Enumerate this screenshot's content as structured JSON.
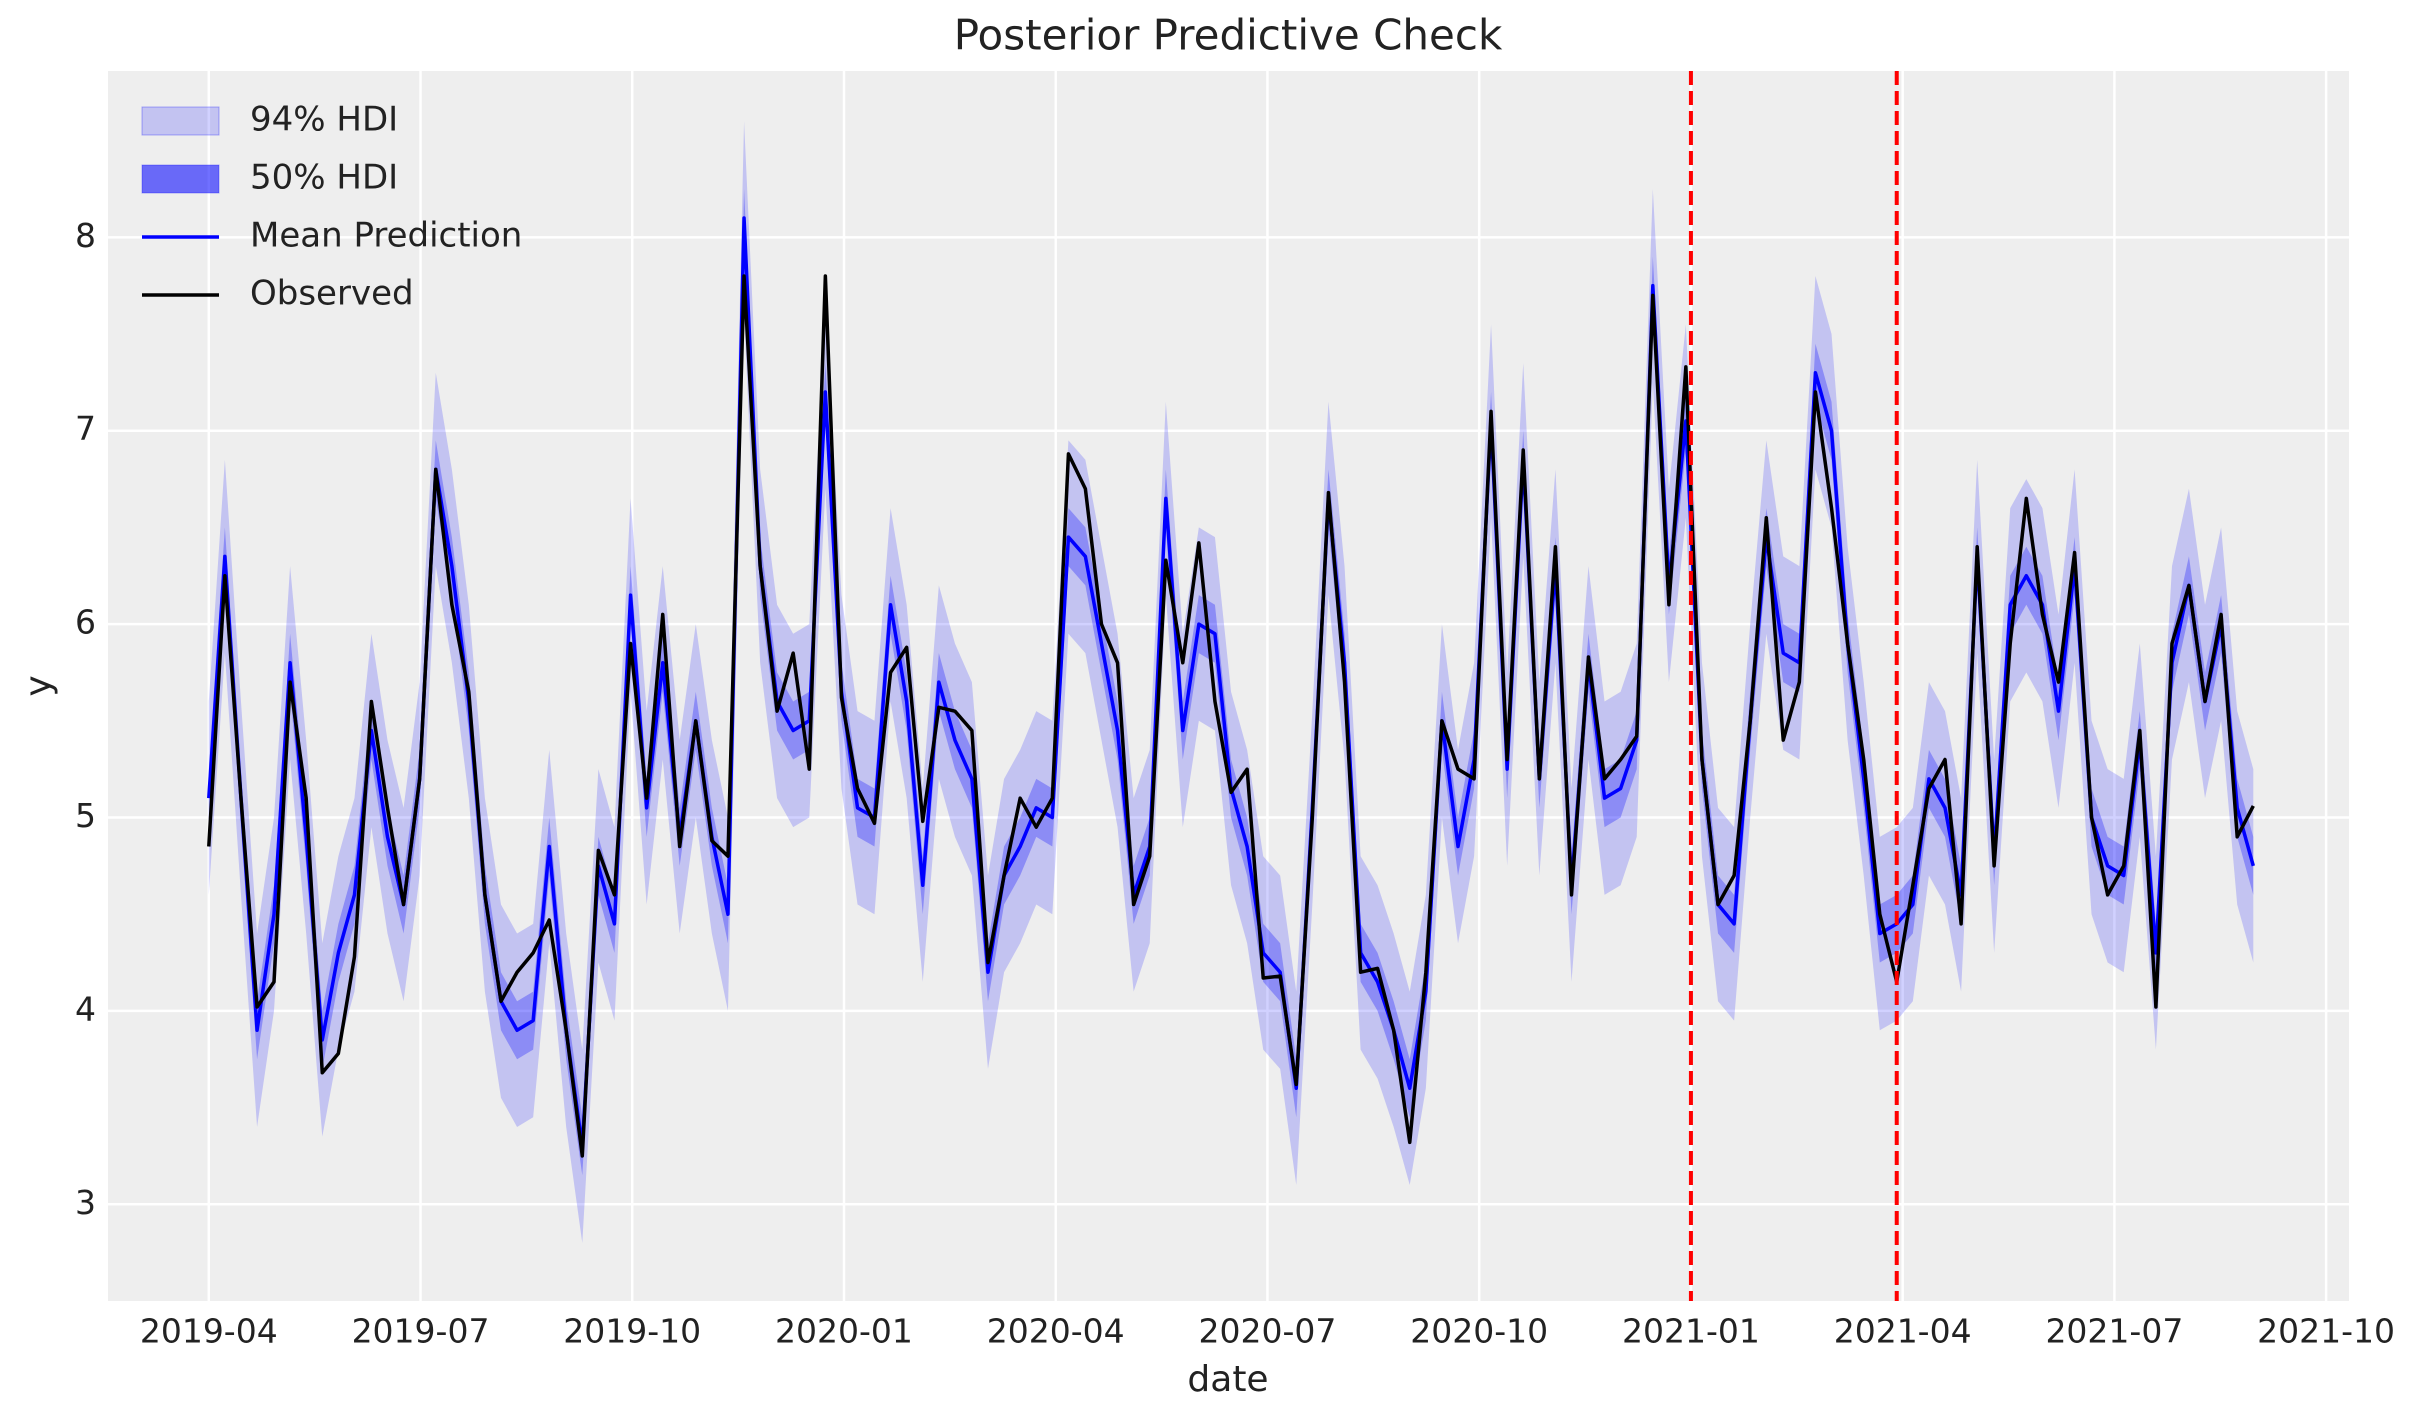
{
  "chart_data": {
    "type": "line",
    "title": "Posterior Predictive Check",
    "xlabel": "date",
    "ylabel": "y",
    "grid": true,
    "legend": "upper left",
    "xlim": [
      2019.131,
      2021.777
    ],
    "xticks": [
      {
        "value": 2019.25,
        "label": "2019-04"
      },
      {
        "value": 2019.5,
        "label": "2019-07"
      },
      {
        "value": 2019.75,
        "label": "2019-10"
      },
      {
        "value": 2020.0,
        "label": "2020-01"
      },
      {
        "value": 2020.25,
        "label": "2020-04"
      },
      {
        "value": 2020.5,
        "label": "2020-07"
      },
      {
        "value": 2020.75,
        "label": "2020-10"
      },
      {
        "value": 2021.0,
        "label": "2021-01"
      },
      {
        "value": 2021.25,
        "label": "2021-04"
      },
      {
        "value": 2021.5,
        "label": "2021-07"
      },
      {
        "value": 2021.75,
        "label": "2021-10"
      }
    ],
    "ylim": [
      2.5,
      8.86
    ],
    "yticks": [
      3,
      4,
      5,
      6,
      7,
      8
    ],
    "x": [
      2019.25,
      2019.269,
      2019.288,
      2019.307,
      2019.327,
      2019.346,
      2019.365,
      2019.384,
      2019.403,
      2019.422,
      2019.442,
      2019.461,
      2019.48,
      2019.499,
      2019.518,
      2019.537,
      2019.557,
      2019.576,
      2019.595,
      2019.614,
      2019.633,
      2019.652,
      2019.672,
      2019.691,
      2019.71,
      2019.729,
      2019.748,
      2019.767,
      2019.786,
      2019.806,
      2019.825,
      2019.844,
      2019.863,
      2019.882,
      2019.901,
      2019.921,
      2019.94,
      2019.959,
      2019.978,
      2019.997,
      2020.016,
      2020.036,
      2020.055,
      2020.074,
      2020.093,
      2020.112,
      2020.131,
      2020.151,
      2020.17,
      2020.189,
      2020.208,
      2020.227,
      2020.246,
      2020.265,
      2020.285,
      2020.304,
      2020.323,
      2020.342,
      2020.361,
      2020.38,
      2020.4,
      2020.419,
      2020.438,
      2020.457,
      2020.476,
      2020.495,
      2020.515,
      2020.534,
      2020.553,
      2020.572,
      2020.591,
      2020.61,
      2020.63,
      2020.649,
      2020.668,
      2020.687,
      2020.706,
      2020.725,
      2020.744,
      2020.764,
      2020.783,
      2020.802,
      2020.821,
      2020.84,
      2020.859,
      2020.879,
      2020.898,
      2020.917,
      2020.936,
      2020.955,
      2020.974,
      2020.994,
      2021.013,
      2021.032,
      2021.051,
      2021.07,
      2021.089,
      2021.109,
      2021.128,
      2021.147,
      2021.166,
      2021.185,
      2021.204,
      2021.223,
      2021.243,
      2021.262,
      2021.281,
      2021.3,
      2021.319,
      2021.338,
      2021.358,
      2021.377,
      2021.396,
      2021.415,
      2021.434,
      2021.453,
      2021.473,
      2021.492,
      2021.511,
      2021.53,
      2021.549,
      2021.568,
      2021.588,
      2021.607,
      2021.626,
      2021.645,
      2021.664
    ],
    "bands": [
      {
        "name": "94% HDI",
        "color": "#0000ff",
        "opacity": 0.18,
        "lower": [
          4.6,
          5.85,
          4.6,
          3.4,
          4.0,
          5.3,
          4.4,
          3.35,
          3.8,
          4.1,
          4.95,
          4.4,
          4.05,
          4.7,
          6.3,
          5.8,
          5.1,
          4.1,
          3.55,
          3.4,
          3.45,
          4.35,
          3.4,
          2.8,
          4.25,
          3.95,
          5.65,
          4.55,
          5.3,
          4.4,
          5.0,
          4.4,
          4.0,
          7.6,
          5.8,
          5.1,
          4.95,
          5.0,
          6.7,
          5.15,
          4.55,
          4.5,
          5.6,
          5.1,
          4.15,
          5.2,
          4.9,
          4.7,
          3.7,
          4.2,
          4.35,
          4.55,
          4.5,
          5.95,
          5.85,
          5.4,
          4.95,
          4.1,
          4.35,
          6.15,
          4.95,
          5.5,
          5.45,
          4.65,
          4.35,
          3.8,
          3.7,
          3.1,
          4.55,
          6.15,
          5.3,
          3.8,
          3.65,
          3.4,
          3.1,
          3.6,
          5.0,
          4.35,
          4.8,
          6.55,
          4.75,
          6.35,
          4.7,
          5.8,
          4.15,
          5.3,
          4.6,
          4.65,
          4.9,
          7.25,
          5.7,
          6.55,
          4.8,
          4.05,
          3.95,
          5.0,
          5.95,
          5.35,
          5.3,
          6.8,
          6.5,
          5.4,
          4.7,
          3.9,
          3.95,
          4.05,
          4.7,
          4.55,
          4.1,
          5.85,
          4.3,
          5.6,
          5.75,
          5.6,
          5.05,
          5.8,
          4.5,
          4.25,
          4.2,
          4.9,
          3.8,
          5.3,
          5.7,
          5.1,
          5.5,
          4.55,
          4.25
        ],
        "upper": [
          5.6,
          6.85,
          5.6,
          4.4,
          5.0,
          6.3,
          5.4,
          4.35,
          4.8,
          5.1,
          5.95,
          5.4,
          5.05,
          5.7,
          7.3,
          6.8,
          6.1,
          5.1,
          4.55,
          4.4,
          4.45,
          5.35,
          4.4,
          3.8,
          5.25,
          4.95,
          6.65,
          5.55,
          6.3,
          5.4,
          6.0,
          5.4,
          5.0,
          8.6,
          6.8,
          6.1,
          5.95,
          6.0,
          7.7,
          6.15,
          5.55,
          5.5,
          6.6,
          6.1,
          5.15,
          6.2,
          5.9,
          5.7,
          4.7,
          5.2,
          5.35,
          5.55,
          5.5,
          6.95,
          6.85,
          6.4,
          5.95,
          5.1,
          5.35,
          7.15,
          5.95,
          6.5,
          6.45,
          5.65,
          5.35,
          4.8,
          4.7,
          4.1,
          5.55,
          7.15,
          6.3,
          4.8,
          4.65,
          4.4,
          4.1,
          4.6,
          6.0,
          5.35,
          5.8,
          7.55,
          5.75,
          7.35,
          5.7,
          6.8,
          5.15,
          6.3,
          5.6,
          5.65,
          5.9,
          8.25,
          6.7,
          7.55,
          5.8,
          5.05,
          4.95,
          6.0,
          6.95,
          6.35,
          6.3,
          7.8,
          7.5,
          6.4,
          5.7,
          4.9,
          4.95,
          5.05,
          5.7,
          5.55,
          5.1,
          6.85,
          5.3,
          6.6,
          6.75,
          6.6,
          6.05,
          6.8,
          5.5,
          5.25,
          5.2,
          5.9,
          4.8,
          6.3,
          6.7,
          6.1,
          6.5,
          5.55,
          5.25
        ]
      },
      {
        "name": "50% HDI",
        "color": "#0000ff",
        "opacity": 0.28,
        "lower": [
          4.95,
          6.2,
          4.95,
          3.75,
          4.35,
          5.65,
          4.75,
          3.7,
          4.15,
          4.45,
          5.3,
          4.75,
          4.4,
          5.05,
          6.65,
          6.15,
          5.45,
          4.45,
          3.9,
          3.75,
          3.8,
          4.7,
          3.75,
          3.15,
          4.6,
          4.3,
          6.0,
          4.9,
          5.65,
          4.75,
          5.35,
          4.75,
          4.35,
          7.95,
          6.15,
          5.45,
          5.3,
          5.35,
          7.05,
          5.5,
          4.9,
          4.85,
          5.95,
          5.45,
          4.5,
          5.55,
          5.25,
          5.05,
          4.05,
          4.55,
          4.7,
          4.9,
          4.85,
          6.3,
          6.2,
          5.75,
          5.3,
          4.45,
          4.7,
          6.5,
          5.3,
          5.85,
          5.8,
          5.0,
          4.7,
          4.15,
          4.05,
          3.45,
          4.9,
          6.5,
          5.65,
          4.15,
          4.0,
          3.75,
          3.45,
          3.95,
          5.35,
          4.7,
          5.15,
          6.9,
          5.1,
          6.7,
          5.05,
          6.15,
          4.5,
          5.65,
          4.95,
          5.0,
          5.25,
          7.6,
          6.05,
          6.9,
          5.15,
          4.4,
          4.3,
          5.35,
          6.3,
          5.7,
          5.65,
          7.15,
          6.85,
          5.75,
          5.05,
          4.25,
          4.3,
          4.4,
          5.05,
          4.9,
          4.45,
          6.2,
          4.65,
          5.95,
          6.1,
          5.95,
          5.4,
          6.15,
          4.85,
          4.6,
          4.55,
          5.25,
          4.15,
          5.65,
          6.05,
          5.45,
          5.85,
          4.9,
          4.6
        ],
        "upper": [
          5.25,
          6.5,
          5.25,
          4.05,
          4.65,
          5.95,
          5.05,
          4.0,
          4.45,
          4.75,
          5.6,
          5.05,
          4.7,
          5.35,
          6.95,
          6.45,
          5.75,
          4.75,
          4.2,
          4.05,
          4.1,
          5.0,
          4.05,
          3.45,
          4.9,
          4.6,
          6.3,
          5.2,
          5.95,
          5.05,
          5.65,
          5.05,
          4.65,
          8.25,
          6.45,
          5.75,
          5.6,
          5.65,
          7.35,
          5.8,
          5.2,
          5.15,
          6.25,
          5.75,
          4.8,
          5.85,
          5.55,
          5.35,
          4.35,
          4.85,
          5.0,
          5.2,
          5.15,
          6.6,
          6.5,
          6.05,
          5.6,
          4.75,
          5.0,
          6.8,
          5.6,
          6.15,
          6.1,
          5.3,
          5.0,
          4.45,
          4.35,
          3.75,
          5.2,
          6.8,
          5.95,
          4.45,
          4.3,
          4.05,
          3.75,
          4.25,
          5.65,
          5.0,
          5.45,
          7.2,
          5.4,
          7.0,
          5.35,
          6.45,
          4.8,
          5.95,
          5.25,
          5.3,
          5.55,
          7.9,
          6.35,
          7.2,
          5.45,
          4.7,
          4.6,
          5.65,
          6.6,
          6.0,
          5.95,
          7.45,
          7.15,
          6.05,
          5.35,
          4.55,
          4.6,
          4.7,
          5.35,
          5.2,
          4.75,
          6.5,
          4.95,
          6.25,
          6.4,
          6.25,
          5.7,
          6.45,
          5.15,
          4.9,
          4.85,
          5.55,
          4.45,
          5.95,
          6.35,
          5.75,
          6.15,
          5.2,
          4.9
        ]
      }
    ],
    "series": [
      {
        "name": "Mean Prediction",
        "color": "#0000ff",
        "values": [
          5.1,
          6.35,
          5.1,
          3.9,
          4.5,
          5.8,
          4.9,
          3.85,
          4.3,
          4.6,
          5.45,
          4.9,
          4.55,
          5.2,
          6.8,
          6.3,
          5.6,
          4.6,
          4.05,
          3.9,
          3.95,
          4.85,
          3.9,
          3.3,
          4.75,
          4.45,
          6.15,
          5.05,
          5.8,
          4.9,
          5.5,
          4.9,
          4.5,
          8.1,
          6.3,
          5.6,
          5.45,
          5.5,
          7.2,
          5.65,
          5.05,
          5.0,
          6.1,
          5.6,
          4.65,
          5.7,
          5.4,
          5.2,
          4.2,
          4.7,
          4.85,
          5.05,
          5.0,
          6.45,
          6.35,
          5.9,
          5.45,
          4.6,
          4.85,
          6.65,
          5.45,
          6.0,
          5.95,
          5.15,
          4.85,
          4.3,
          4.2,
          3.6,
          5.05,
          6.65,
          5.8,
          4.3,
          4.15,
          3.9,
          3.6,
          4.1,
          5.5,
          4.85,
          5.3,
          7.05,
          5.25,
          6.85,
          5.2,
          6.3,
          4.65,
          5.8,
          5.1,
          5.15,
          5.4,
          7.75,
          6.2,
          7.05,
          5.3,
          4.55,
          4.45,
          5.5,
          6.45,
          5.85,
          5.8,
          7.3,
          7.0,
          5.9,
          5.2,
          4.4,
          4.45,
          4.55,
          5.2,
          5.05,
          4.6,
          6.35,
          4.8,
          6.1,
          6.25,
          6.1,
          5.55,
          6.3,
          5.0,
          4.75,
          4.7,
          5.4,
          4.3,
          5.8,
          6.2,
          5.6,
          6.0,
          5.05,
          4.75
        ]
      },
      {
        "name": "Observed",
        "color": "#000000",
        "values": [
          4.85,
          6.25,
          5.1,
          4.02,
          4.15,
          5.7,
          5.1,
          3.68,
          3.78,
          4.28,
          5.6,
          5.05,
          4.55,
          5.2,
          6.8,
          6.1,
          5.65,
          4.6,
          4.05,
          4.2,
          4.3,
          4.47,
          3.9,
          3.25,
          4.83,
          4.6,
          5.9,
          5.1,
          6.05,
          4.85,
          5.5,
          4.88,
          4.8,
          7.8,
          6.3,
          5.55,
          5.85,
          5.25,
          7.8,
          5.62,
          5.15,
          4.97,
          5.75,
          5.88,
          4.98,
          5.57,
          5.55,
          5.45,
          4.25,
          4.7,
          5.1,
          4.95,
          5.1,
          6.88,
          6.7,
          6.0,
          5.8,
          4.55,
          4.8,
          6.33,
          5.8,
          6.42,
          5.6,
          5.13,
          5.25,
          4.17,
          4.18,
          3.62,
          5.0,
          6.68,
          5.7,
          4.2,
          4.22,
          3.9,
          3.32,
          4.2,
          5.5,
          5.25,
          5.2,
          7.1,
          5.3,
          6.9,
          5.2,
          6.4,
          4.6,
          5.83,
          5.2,
          5.3,
          5.42,
          7.7,
          6.1,
          7.33,
          5.3,
          4.55,
          4.7,
          5.5,
          6.55,
          5.4,
          5.7,
          7.2,
          6.6,
          5.9,
          5.3,
          4.5,
          4.15,
          4.65,
          5.15,
          5.3,
          4.45,
          6.4,
          4.75,
          5.9,
          6.65,
          6.05,
          5.7,
          6.37,
          5.0,
          4.6,
          4.75,
          5.45,
          4.02,
          5.9,
          6.2,
          5.6,
          6.05,
          4.9,
          5.06
        ]
      }
    ],
    "vlines": {
      "color": "#ff0000",
      "x": [
        2021.0,
        2021.243
      ]
    }
  }
}
